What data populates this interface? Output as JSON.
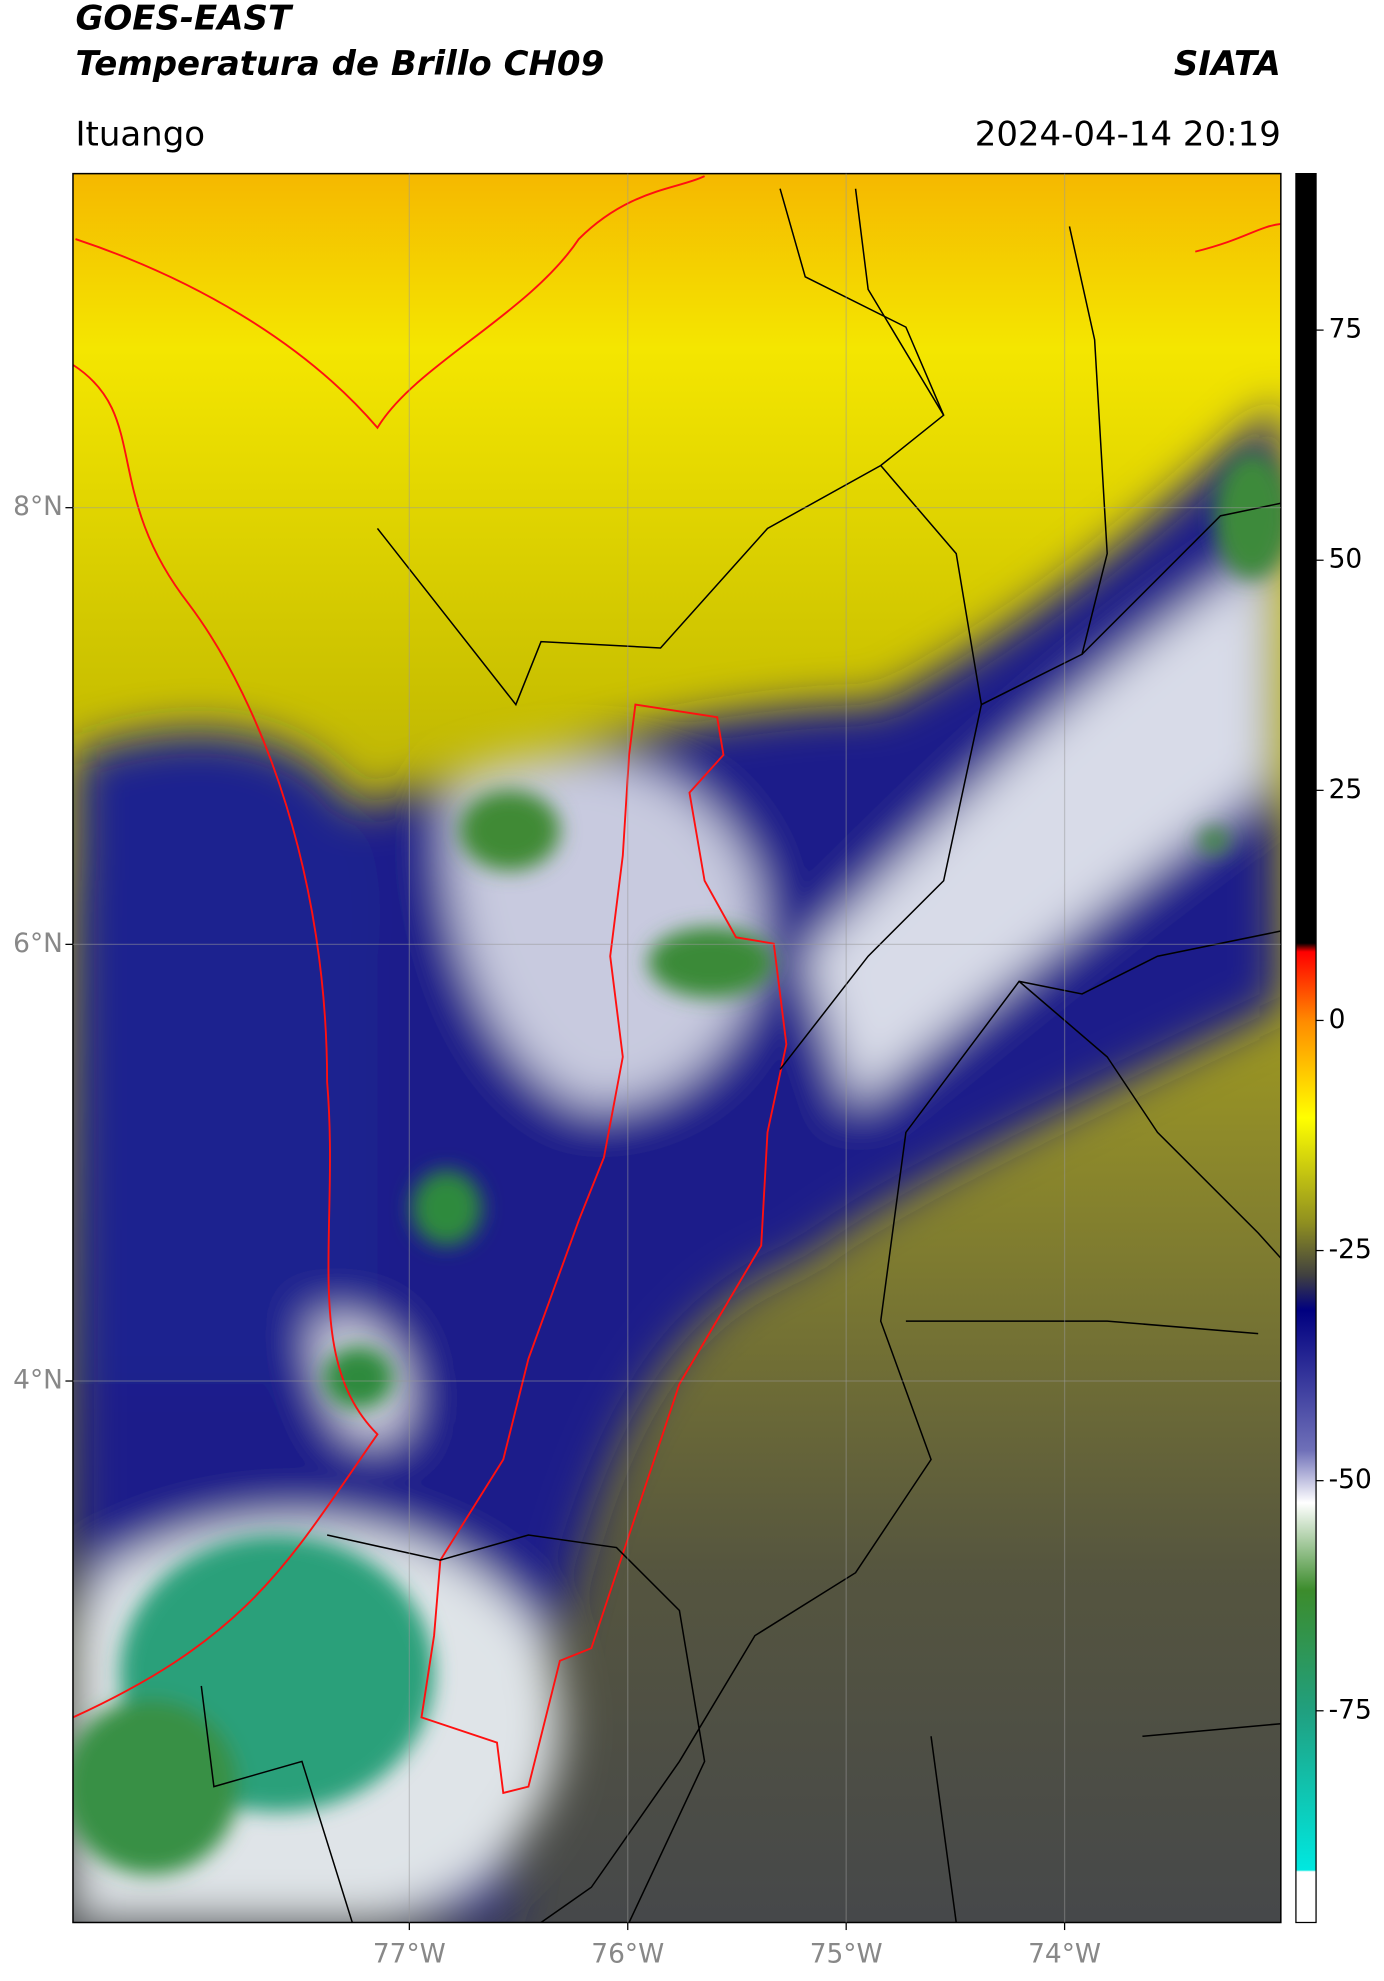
{
  "header": {
    "title": "GOES-EAST",
    "subtitle": "Temperatura de Brillo CH09",
    "source": "SIATA",
    "location": "Ituango",
    "datetime": "2024-04-14 20:19"
  },
  "map": {
    "xlim": [
      -78.54,
      -73.01
    ],
    "ylim": [
      1.52,
      9.53
    ],
    "xticks": [
      {
        "value": -77,
        "label": "77°W"
      },
      {
        "value": -76,
        "label": "76°W"
      },
      {
        "value": -75,
        "label": "75°W"
      },
      {
        "value": -74,
        "label": "74°W"
      }
    ],
    "yticks": [
      {
        "value": 8,
        "label": "8°N"
      },
      {
        "value": 6,
        "label": "6°N"
      },
      {
        "value": 4,
        "label": "4°N"
      }
    ],
    "grid": true
  },
  "colorbar": {
    "lim": [
      -98,
      92
    ],
    "ticks": [
      75,
      50,
      25,
      0,
      -25,
      -50,
      -75
    ]
  }
}
